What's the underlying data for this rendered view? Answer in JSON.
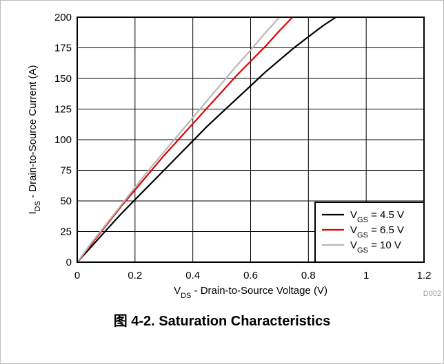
{
  "caption": "图 4-2. Saturation Characteristics",
  "figure_id": "D002",
  "chart_data": {
    "type": "line",
    "xlabel": {
      "prefix": "V",
      "sub": "DS",
      "rest": " - Drain-to-Source Voltage (V)"
    },
    "ylabel": {
      "prefix": "I",
      "sub": "DS",
      "rest": " - Drain-to-Source Current (A)"
    },
    "xlim": [
      0,
      1.2
    ],
    "ylim": [
      0,
      200
    ],
    "xticks": [
      0,
      0.2,
      0.4,
      0.6,
      0.8,
      1,
      1.2
    ],
    "xtick_labels": [
      "0",
      "0.2",
      "0.4",
      "0.6",
      "0.8",
      "1",
      "1.2"
    ],
    "yticks": [
      0,
      25,
      50,
      75,
      100,
      125,
      150,
      175,
      200
    ],
    "ytick_labels": [
      "0",
      "25",
      "50",
      "75",
      "100",
      "125",
      "150",
      "175",
      "200"
    ],
    "grid": true,
    "legend_position": "bottom-right",
    "series": [
      {
        "name": "VGS = 4.5 V",
        "legend": {
          "prefix": "V",
          "sub": "GS",
          "rest": " = 4.5 V"
        },
        "color": "#000000",
        "x": [
          0,
          0.05,
          0.1,
          0.15,
          0.2,
          0.25,
          0.3,
          0.35,
          0.4,
          0.45,
          0.5,
          0.55,
          0.6,
          0.65,
          0.7,
          0.75,
          0.8,
          0.85,
          0.895
        ],
        "y": [
          0,
          13,
          26,
          39,
          51,
          63,
          75,
          87,
          99,
          111,
          122,
          133,
          144,
          155,
          165,
          175,
          184,
          193,
          200
        ]
      },
      {
        "name": "VGS = 6.5 V",
        "legend": {
          "prefix": "V",
          "sub": "GS",
          "rest": " = 6.5 V"
        },
        "color": "#e00000",
        "x": [
          0,
          0.05,
          0.1,
          0.15,
          0.2,
          0.25,
          0.3,
          0.35,
          0.4,
          0.45,
          0.5,
          0.55,
          0.6,
          0.65,
          0.7,
          0.745
        ],
        "y": [
          0,
          15,
          30,
          45,
          59,
          73,
          87,
          100,
          113,
          126,
          139,
          152,
          164,
          176,
          189,
          200
        ]
      },
      {
        "name": "VGS = 10 V",
        "legend": {
          "prefix": "V",
          "sub": "GS",
          "rest": " = 10 V"
        },
        "color": "#b8b8b8",
        "x": [
          0,
          0.05,
          0.1,
          0.15,
          0.2,
          0.25,
          0.3,
          0.35,
          0.4,
          0.45,
          0.5,
          0.55,
          0.6,
          0.65,
          0.7
        ],
        "y": [
          0,
          16,
          31,
          46,
          61,
          76,
          90,
          104,
          118,
          132,
          146,
          160,
          173,
          187,
          200
        ]
      }
    ]
  }
}
